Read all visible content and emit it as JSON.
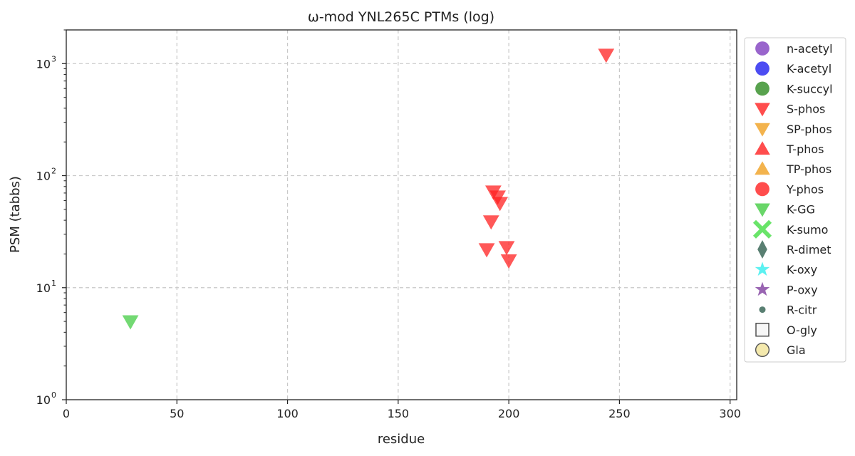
{
  "chart_data": {
    "type": "scatter",
    "title": "ω-mod YNL265C PTMs (log)",
    "xlabel": "residue",
    "ylabel": "PSM (tabbs)",
    "xlim": [
      0,
      303
    ],
    "ylim": [
      1,
      2000
    ],
    "yscale": "log",
    "x_ticks": [
      0,
      50,
      100,
      150,
      200,
      250,
      300
    ],
    "y_ticks": [
      {
        "value": 1,
        "base": "10",
        "exp": "0"
      },
      {
        "value": 10,
        "base": "10",
        "exp": "1"
      },
      {
        "value": 100,
        "base": "10",
        "exp": "2"
      },
      {
        "value": 1000,
        "base": "10",
        "exp": "3"
      }
    ],
    "grid": true,
    "legend_position": "outside-right",
    "legend": [
      {
        "name": "n-acetyl",
        "marker": "circle",
        "color": "#7f3fbf"
      },
      {
        "name": "K-acetyl",
        "marker": "circle",
        "color": "#1f1fef"
      },
      {
        "name": "K-succyl",
        "marker": "circle",
        "color": "#2e8b22"
      },
      {
        "name": "S-phos",
        "marker": "triangle-down",
        "color": "#ff2020"
      },
      {
        "name": "SP-phos",
        "marker": "triangle-down",
        "color": "#f0a020"
      },
      {
        "name": "T-phos",
        "marker": "triangle-up",
        "color": "#ff2020"
      },
      {
        "name": "TP-phos",
        "marker": "triangle-up",
        "color": "#f0a020"
      },
      {
        "name": "Y-phos",
        "marker": "circle",
        "color": "#ff2020"
      },
      {
        "name": "K-GG",
        "marker": "triangle-down",
        "color": "#44cc44"
      },
      {
        "name": "K-sumo",
        "marker": "x",
        "color": "#44dd44"
      },
      {
        "name": "R-dimet",
        "marker": "diamond",
        "color": "#2f5f4f"
      },
      {
        "name": "K-oxy",
        "marker": "star",
        "color": "#33eeee"
      },
      {
        "name": "P-oxy",
        "marker": "star",
        "color": "#7f3f9f"
      },
      {
        "name": "R-citr",
        "marker": "dot",
        "color": "#2f5f4f"
      },
      {
        "name": "O-gly",
        "marker": "square-open",
        "color": "#444444"
      },
      {
        "name": "Gla",
        "marker": "circle-open",
        "color": "#f0e08a"
      }
    ],
    "series": [
      {
        "name": "S-phos",
        "marker": "triangle-down",
        "color": "#ff2020",
        "points": [
          {
            "x": 244,
            "y": 1200
          },
          {
            "x": 193,
            "y": 72
          },
          {
            "x": 195,
            "y": 65
          },
          {
            "x": 196,
            "y": 57
          },
          {
            "x": 192,
            "y": 39
          },
          {
            "x": 190,
            "y": 22
          },
          {
            "x": 199,
            "y": 23
          },
          {
            "x": 200,
            "y": 17.5
          }
        ]
      },
      {
        "name": "K-GG",
        "marker": "triangle-down",
        "color": "#44cc44",
        "points": [
          {
            "x": 29,
            "y": 5
          }
        ]
      }
    ]
  }
}
